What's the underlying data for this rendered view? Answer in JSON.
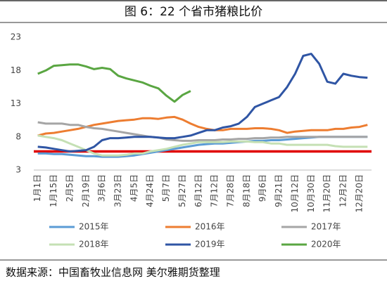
{
  "chart_data": {
    "type": "line",
    "title": "图 6：22 个省市猪粮比价",
    "categories": [
      "1月1日",
      null,
      "1月15日",
      null,
      "2月5日",
      null,
      "2月19日",
      null,
      "3月6日",
      null,
      "3月23日",
      null,
      "4月5日",
      null,
      "4月24日",
      null,
      "5月7日",
      null,
      "5月27日",
      null,
      "6月12日",
      null,
      "7月12日",
      null,
      "7月28日",
      null,
      "8月18日",
      null,
      "9月6日",
      null,
      "9月21日",
      null,
      "10月12日",
      null,
      "10月30日",
      null,
      "11月20日",
      null,
      "12月2日",
      null,
      "12月20日",
      null
    ],
    "series": [
      {
        "name": "2015年",
        "color": "#5b9bd5",
        "values": [
          5.5,
          5.5,
          5.4,
          5.4,
          5.3,
          5.2,
          5.1,
          5.1,
          5.0,
          5.0,
          5.0,
          5.1,
          5.2,
          5.4,
          5.6,
          5.8,
          6.0,
          6.2,
          6.4,
          6.6,
          6.8,
          6.9,
          7.0,
          7.0,
          7.1,
          7.2,
          7.3,
          7.4,
          7.4,
          7.5,
          7.5,
          7.6,
          7.7,
          7.8,
          7.9,
          8.0,
          8.0,
          8.0,
          8.0,
          8.0,
          8.0,
          8.0
        ]
      },
      {
        "name": "2016年",
        "color": "#ed7d31",
        "values": [
          8.2,
          8.5,
          8.6,
          8.8,
          9.0,
          9.2,
          9.5,
          9.8,
          10.0,
          10.2,
          10.4,
          10.5,
          10.6,
          10.8,
          10.8,
          10.7,
          10.9,
          11.0,
          10.6,
          10.0,
          9.5,
          9.2,
          9.0,
          9.0,
          9.2,
          9.2,
          9.2,
          9.3,
          9.3,
          9.2,
          9.0,
          8.6,
          8.8,
          8.9,
          9.0,
          9.0,
          9.0,
          9.2,
          9.2,
          9.4,
          9.5,
          9.8
        ]
      },
      {
        "name": "2017年",
        "color": "#a5a5a5",
        "values": [
          10.2,
          10.0,
          10.0,
          10.0,
          9.8,
          9.8,
          9.5,
          9.3,
          9.2,
          9.0,
          8.8,
          8.6,
          8.4,
          8.2,
          8.0,
          7.9,
          7.6,
          7.5,
          7.4,
          7.4,
          7.5,
          7.5,
          7.5,
          7.6,
          7.6,
          7.7,
          7.7,
          7.8,
          7.8,
          7.9,
          7.9,
          8.0,
          8.0,
          8.0,
          8.0,
          8.0,
          8.0,
          8.0,
          8.0,
          8.0,
          8.0,
          8.0
        ]
      },
      {
        "name": "2018年",
        "color": "#c5e0b4",
        "values": [
          8.2,
          8.0,
          7.8,
          7.5,
          7.0,
          6.5,
          6.0,
          5.5,
          5.2,
          5.2,
          5.2,
          5.3,
          5.5,
          5.5,
          5.8,
          6.0,
          6.2,
          6.5,
          6.8,
          7.0,
          7.2,
          7.2,
          7.2,
          7.2,
          7.3,
          7.3,
          7.3,
          7.2,
          7.2,
          7.0,
          7.0,
          6.8,
          6.8,
          6.8,
          6.8,
          6.8,
          6.8,
          6.6,
          6.5,
          6.5,
          6.5,
          6.5
        ]
      },
      {
        "name": "2019年",
        "color": "#2f55a4",
        "values": [
          6.5,
          6.4,
          6.2,
          6.0,
          5.8,
          5.9,
          6.0,
          6.5,
          7.5,
          7.8,
          7.8,
          7.9,
          8.0,
          8.0,
          8.0,
          7.9,
          7.8,
          7.8,
          8.0,
          8.2,
          8.6,
          9.0,
          9.0,
          9.4,
          9.6,
          10.0,
          11.0,
          12.5,
          13.0,
          13.5,
          14.0,
          15.5,
          17.5,
          20.2,
          20.5,
          19.0,
          16.3,
          16.0,
          17.5,
          17.2,
          17.0,
          16.9
        ]
      },
      {
        "name": "2020年",
        "color": "#5aa642",
        "values": [
          17.5,
          18.0,
          18.7,
          18.8,
          18.9,
          18.9,
          18.6,
          18.2,
          18.4,
          18.2,
          17.2,
          16.8,
          16.5,
          16.2,
          15.7,
          15.3,
          14.2,
          13.3,
          14.3,
          14.9,
          null,
          null,
          null,
          null,
          null,
          null,
          null,
          null,
          null,
          null,
          null,
          null,
          null,
          null,
          null,
          null,
          null,
          null,
          null,
          null,
          null,
          null
        ]
      }
    ],
    "reference_line": {
      "value": 5.8,
      "color": "#e00000"
    },
    "ylim": [
      3,
      23
    ],
    "yticks": [
      3,
      8,
      13,
      18,
      23
    ],
    "source": "数据来源：中国畜牧业信息网 美尔雅期货整理"
  }
}
